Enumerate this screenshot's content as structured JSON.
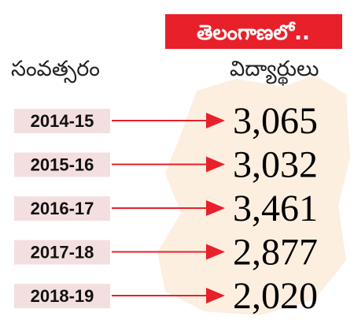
{
  "header": {
    "badge": "తెలంగాణలో..",
    "year_column": "సంవత్సరం",
    "count_column": "విద్యార్థులు"
  },
  "table": {
    "rows": [
      [
        "2014-15",
        "3,065"
      ],
      [
        "2015-16",
        "3,032"
      ],
      [
        "2016-17",
        "3,461"
      ],
      [
        "2017-18",
        "2,877"
      ],
      [
        "2018-19",
        "2,020"
      ]
    ]
  }
}
